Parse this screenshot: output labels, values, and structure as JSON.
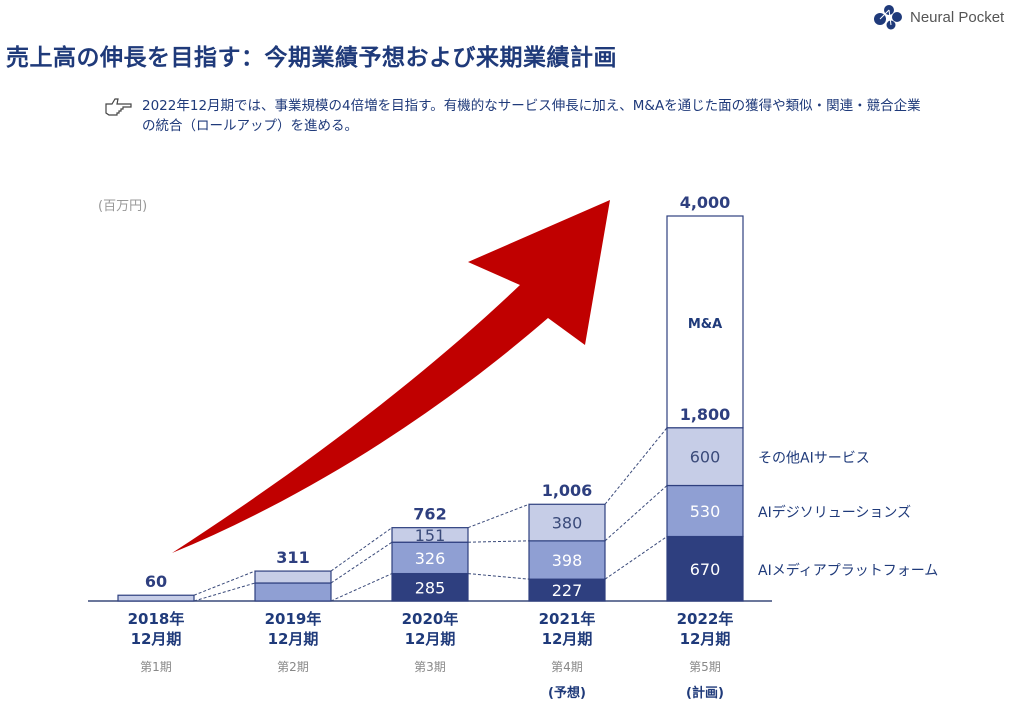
{
  "header": {
    "title": "売上高の伸長を目指す：今期業績予想および来期業績計画",
    "logo": "Neural Pocket"
  },
  "lead": "2022年12月期では、事業規模の4倍増を目指す。有機的なサービス伸長に加え、M&Aを通じた面の獲得や類似・関連・競合企業の統合（ロールアップ）を進める。",
  "chart_data": {
    "type": "bar",
    "stacked": true,
    "unit": "(百万円)",
    "categories": [
      {
        "year": "2018年",
        "month": "12月期",
        "term": "第1期",
        "note": ""
      },
      {
        "year": "2019年",
        "month": "12月期",
        "term": "第2期",
        "note": ""
      },
      {
        "year": "2020年",
        "month": "12月期",
        "term": "第3期",
        "note": ""
      },
      {
        "year": "2021年",
        "month": "12月期",
        "term": "第4期",
        "note": "(予想)"
      },
      {
        "year": "2022年",
        "month": "12月期",
        "term": "第5期",
        "note": "(計画)"
      }
    ],
    "totals": [
      "60",
      "311",
      "762",
      "1,006",
      "4,000"
    ],
    "total_values": [
      60,
      311,
      762,
      1006,
      4000
    ],
    "subtotal_label": "1,800",
    "subtotal_value": 1800,
    "series": [
      {
        "name": "AIメディアプラットフォーム",
        "color": "#2e3f7f",
        "text": "#ffffff",
        "values": [
          0,
          0,
          285,
          227,
          670
        ],
        "labels": [
          "",
          "",
          "285",
          "227",
          "670"
        ]
      },
      {
        "name": "AIデジソリューションズ",
        "color": "#8f9fd3",
        "text": "#ffffff",
        "values": [
          0,
          187,
          326,
          398,
          530
        ],
        "labels": [
          "",
          "",
          "326",
          "398",
          "530"
        ]
      },
      {
        "name": "その他AIサービス",
        "color": "#c6cde7",
        "text": "#3a4a7a",
        "values": [
          60,
          124,
          151,
          380,
          600
        ],
        "labels": [
          "",
          "",
          "151",
          "380",
          "600"
        ]
      },
      {
        "name": "M&A",
        "color": "#ffffff",
        "text": "#1f3a7a",
        "values": [
          0,
          0,
          0,
          0,
          2200
        ],
        "labels": [
          "",
          "",
          "",
          "",
          "M&A"
        ]
      }
    ],
    "ylim": [
      0,
      4000
    ],
    "accent": "#c00000"
  }
}
